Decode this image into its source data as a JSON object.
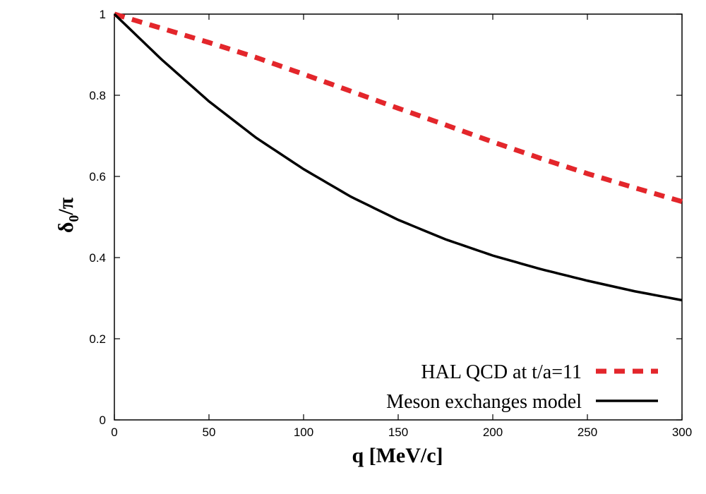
{
  "chart_data": {
    "type": "line",
    "xlabel": "q [MeV/c]",
    "ylabel": {
      "main": "δ",
      "sub": "0",
      "tail": "/π"
    },
    "xlim": [
      0,
      300
    ],
    "ylim": [
      0,
      1
    ],
    "x_ticks": [
      0,
      50,
      100,
      150,
      200,
      250,
      300
    ],
    "y_ticks": [
      0,
      0.2,
      0.4,
      0.6,
      0.8,
      1
    ],
    "x_tick_labels": [
      "0",
      "50",
      "100",
      "150",
      "200",
      "250",
      "300"
    ],
    "y_tick_labels": [
      "0",
      "0.2",
      "0.4",
      "0.6",
      "0.8",
      "1"
    ],
    "grid": false,
    "legend_position": "bottom-right",
    "series": [
      {
        "name": "HAL QCD at t/a=11",
        "color": "#e3262b",
        "style": "dashed",
        "x": [
          0,
          25,
          50,
          75,
          100,
          125,
          150,
          175,
          200,
          225,
          250,
          275,
          300
        ],
        "y": [
          1.0,
          0.965,
          0.93,
          0.893,
          0.852,
          0.81,
          0.768,
          0.727,
          0.685,
          0.645,
          0.607,
          0.572,
          0.538
        ]
      },
      {
        "name": "Meson exchanges model",
        "color": "#000000",
        "style": "solid",
        "x": [
          0,
          25,
          50,
          75,
          100,
          125,
          150,
          175,
          200,
          225,
          250,
          275,
          300
        ],
        "y": [
          1.0,
          0.888,
          0.785,
          0.695,
          0.618,
          0.55,
          0.493,
          0.445,
          0.405,
          0.372,
          0.343,
          0.317,
          0.295
        ]
      }
    ]
  }
}
